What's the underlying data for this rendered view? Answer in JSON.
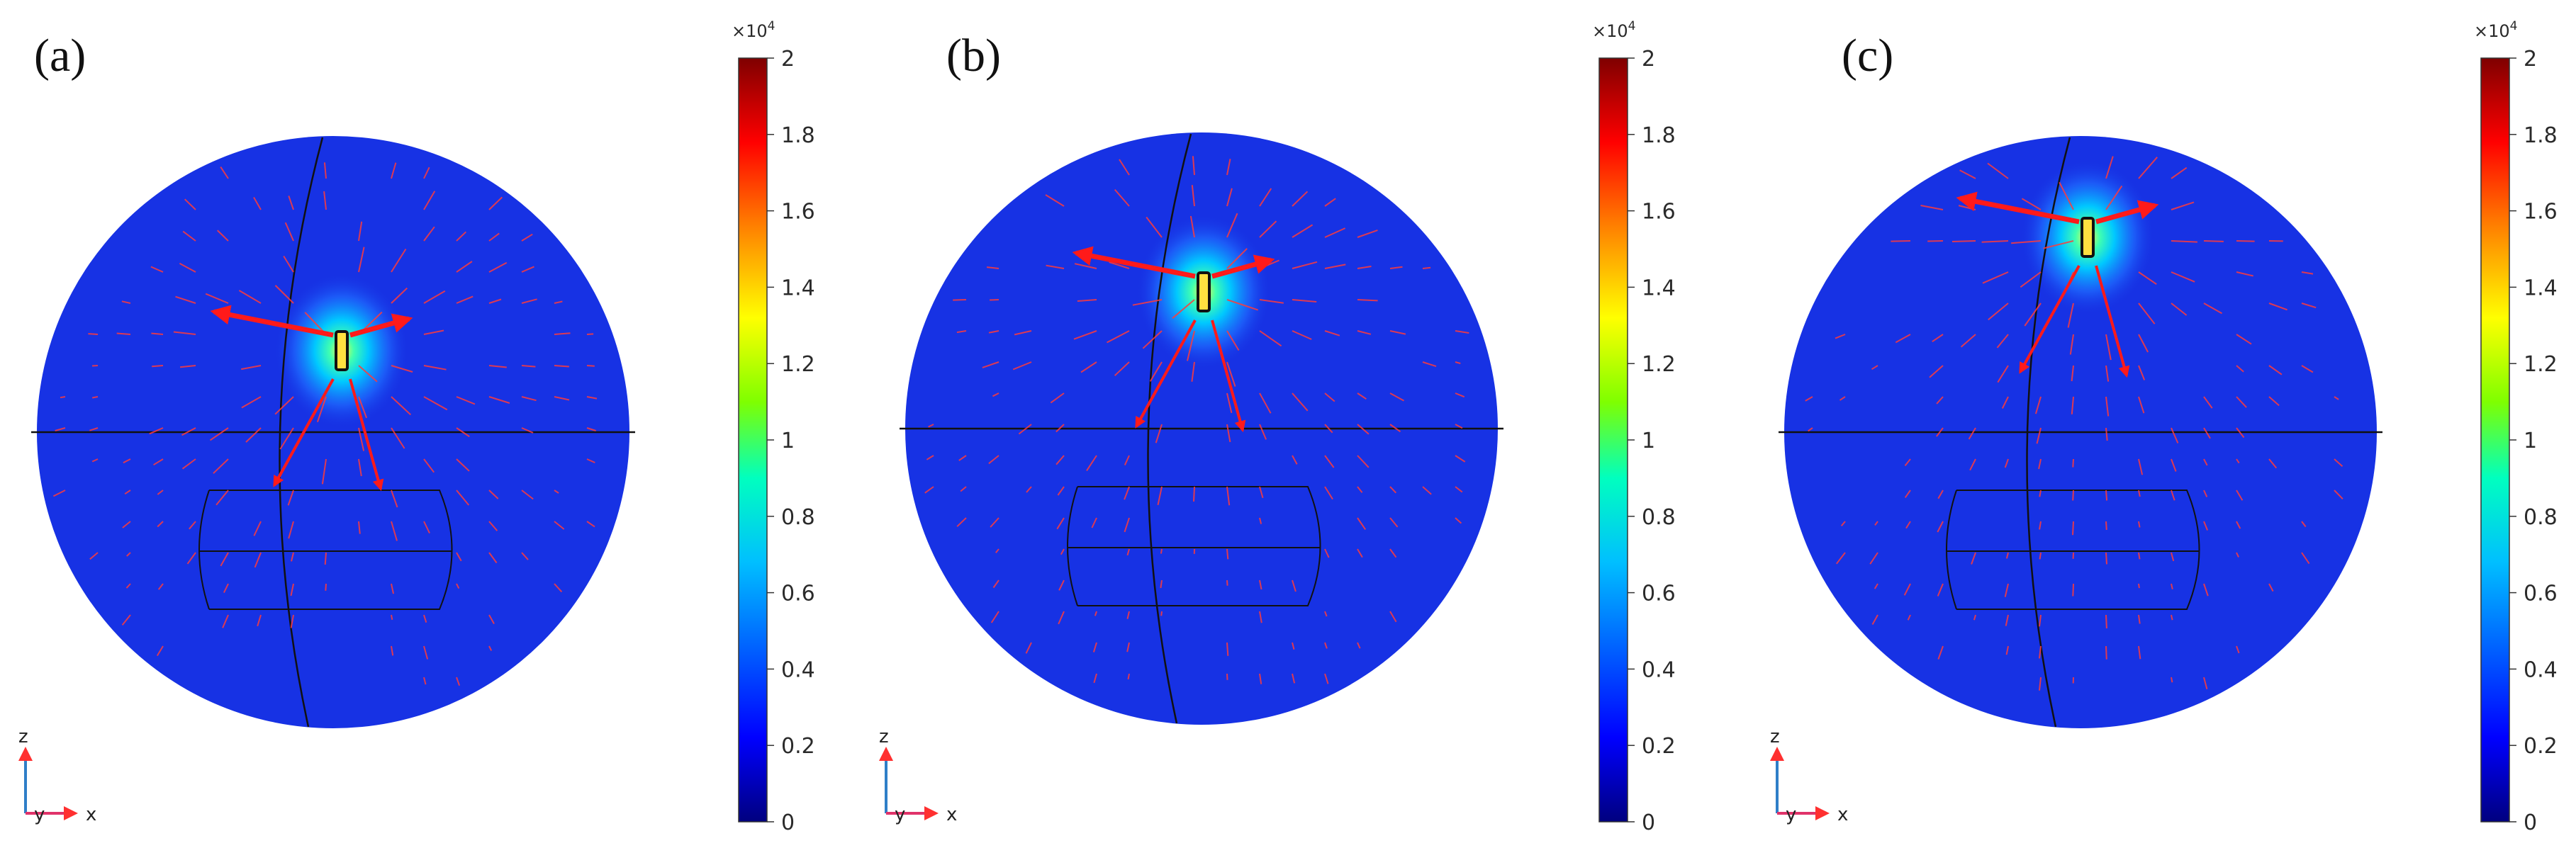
{
  "figure": {
    "panels": [
      {
        "label": "(a)",
        "colorbar": {
          "exponent_label": "×10",
          "exponent_power": "4",
          "ticks": [
            "2",
            "1.8",
            "1.6",
            "1.4",
            "1.2",
            "1",
            "0.8",
            "0.6",
            "0.4",
            "0.2",
            "0"
          ]
        },
        "axes": {
          "z": "z",
          "y": "y",
          "x": "x"
        },
        "source_position_note": "source near center of upper hemisphere"
      },
      {
        "label": "(b)",
        "colorbar": {
          "exponent_label": "×10",
          "exponent_power": "4",
          "ticks": [
            "2",
            "1.8",
            "1.6",
            "1.4",
            "1.2",
            "1",
            "0.8",
            "0.6",
            "0.4",
            "0.2",
            "0"
          ]
        },
        "axes": {
          "z": "z",
          "y": "y",
          "x": "x"
        }
      },
      {
        "label": "(c)",
        "colorbar": {
          "exponent_label": "×10",
          "exponent_power": "4",
          "ticks": [
            "2",
            "1.8",
            "1.6",
            "1.4",
            "1.2",
            "1",
            "0.8",
            "0.6",
            "0.4",
            "0.2",
            "0"
          ]
        },
        "axes": {
          "z": "z",
          "y": "y",
          "x": "x"
        }
      }
    ],
    "colors": {
      "sphere": "#1732e4",
      "arrows": "#ff1a1a",
      "outline": "#111111"
    },
    "colormap": [
      "#00007f",
      "#0000ff",
      "#00bfff",
      "#00ffbf",
      "#7fff00",
      "#ffff00",
      "#ff8000",
      "#ff0000",
      "#7f0000"
    ]
  }
}
